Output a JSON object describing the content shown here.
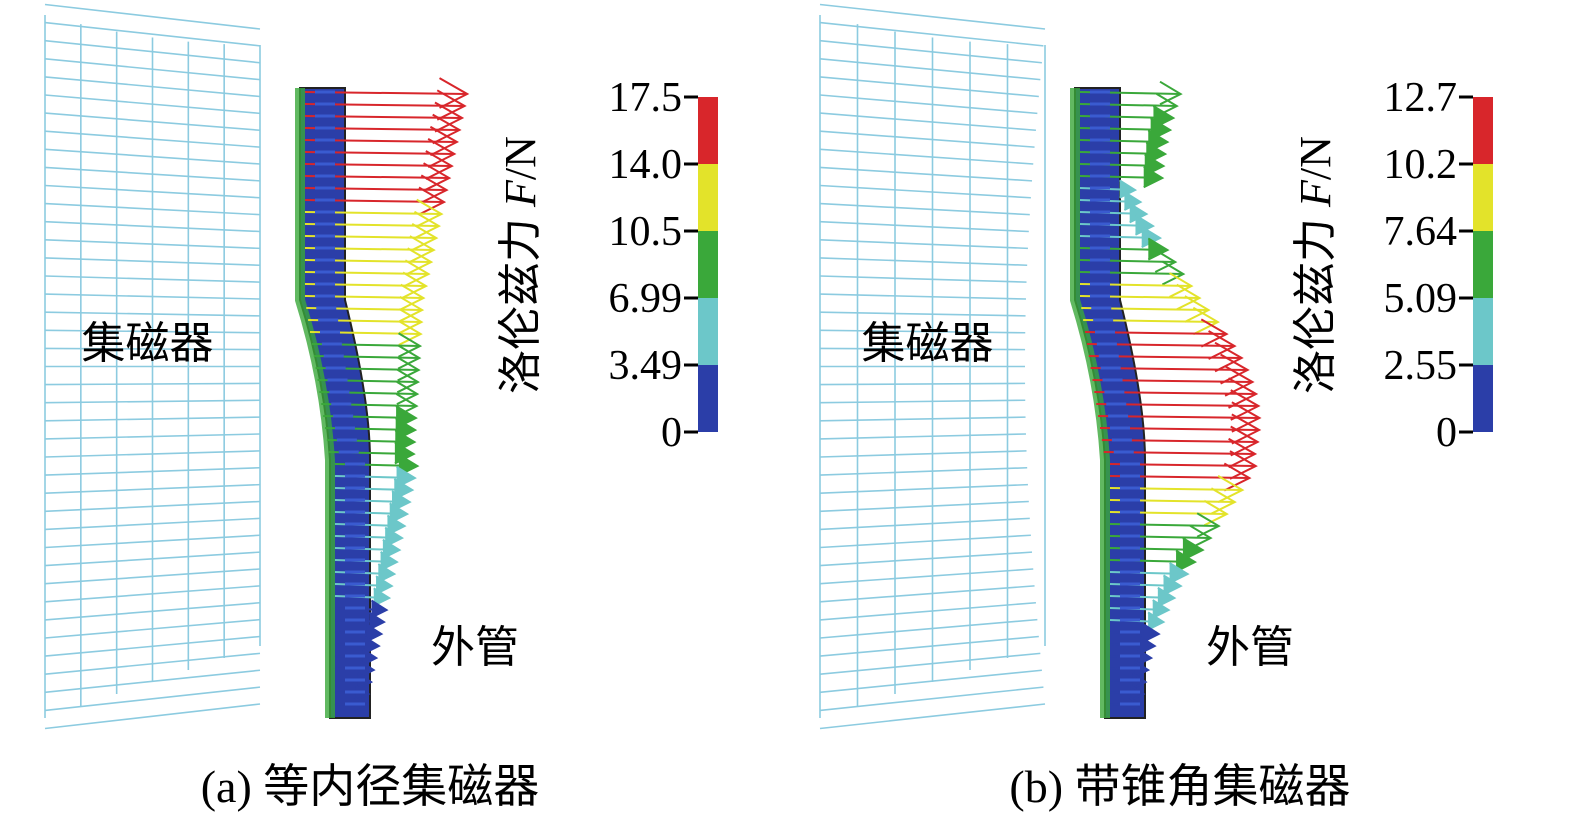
{
  "panels": [
    {
      "collector_label": "集磁器",
      "tube_label": "外管",
      "colorbar": {
        "title": {
          "text": "洛伦兹力 ",
          "symbol": "F",
          "unit": "/N"
        },
        "ticks": [
          "17.5",
          "14.0",
          "10.5",
          "6.99",
          "3.49",
          "0"
        ],
        "colors": [
          "#d8262b",
          "#e3e32a",
          "#3aa83a",
          "#6cc7c9",
          "#2b3ea8"
        ]
      },
      "caption": "(a) 等内径集磁器"
    },
    {
      "collector_label": "集磁器",
      "tube_label": "外管",
      "colorbar": {
        "title": {
          "text": "洛伦兹力 ",
          "symbol": "F",
          "unit": "/N"
        },
        "ticks": [
          "12.7",
          "10.2",
          "7.64",
          "5.09",
          "2.55",
          "0"
        ],
        "colors": [
          "#d8262b",
          "#e3e32a",
          "#3aa83a",
          "#6cc7c9",
          "#2b3ea8"
        ]
      },
      "caption": "(b) 带锥角集磁器"
    }
  ]
}
